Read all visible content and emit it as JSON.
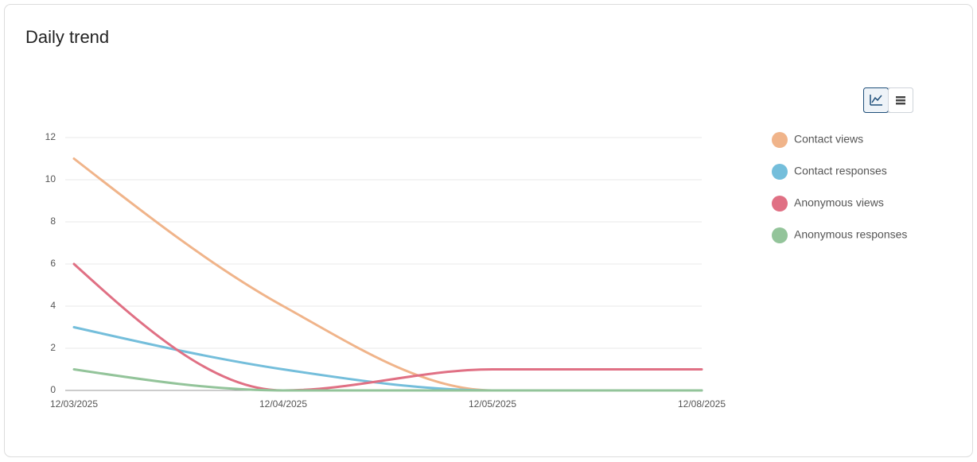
{
  "chart_data": {
    "type": "line",
    "title": "Daily trend",
    "categories": [
      "12/03/2025",
      "12/04/2025",
      "12/05/2025",
      "12/08/2025"
    ],
    "series": [
      {
        "name": "Contact views",
        "color": "#f0b48a",
        "values": [
          11,
          4,
          0,
          0
        ]
      },
      {
        "name": "Contact responses",
        "color": "#74bedb",
        "values": [
          3,
          1,
          0,
          0
        ]
      },
      {
        "name": "Anonymous views",
        "color": "#e07084",
        "values": [
          6,
          0,
          1,
          1
        ]
      },
      {
        "name": "Anonymous responses",
        "color": "#93c49a",
        "values": [
          1,
          0,
          0,
          0
        ]
      }
    ],
    "ylim": [
      0,
      12
    ],
    "yticks": [
      0,
      2,
      4,
      6,
      8,
      10,
      12
    ],
    "grid": true,
    "legend": "right"
  }
}
